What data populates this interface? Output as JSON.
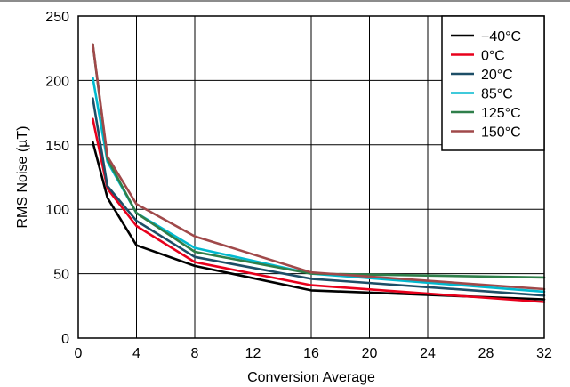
{
  "chart_data": {
    "type": "line",
    "title": "",
    "xlabel": "Conversion Average",
    "ylabel": "RMS Noise (µT)",
    "xlim": [
      0,
      32
    ],
    "ylim": [
      0,
      250
    ],
    "xticks": [
      0,
      4,
      8,
      12,
      16,
      20,
      24,
      28,
      32
    ],
    "yticks": [
      0,
      50,
      100,
      150,
      200,
      250
    ],
    "grid": true,
    "legend_position": "top-right",
    "x": [
      1,
      2,
      4,
      8,
      16,
      32
    ],
    "series": [
      {
        "name": "−40°C",
        "color": "#000000",
        "values": [
          152,
          109,
          72,
          56,
          37,
          30
        ]
      },
      {
        "name": "0°C",
        "color": "#e8001c",
        "values": [
          170,
          116,
          87,
          59,
          41,
          28
        ]
      },
      {
        "name": "20°C",
        "color": "#1d4e67",
        "values": [
          186,
          118,
          91,
          63,
          46,
          33
        ]
      },
      {
        "name": "85°C",
        "color": "#00b9cf",
        "values": [
          202,
          137,
          97,
          70,
          50,
          36
        ]
      },
      {
        "name": "125°C",
        "color": "#2f7f4a",
        "values": [
          228,
          139,
          97,
          67,
          50,
          47
        ]
      },
      {
        "name": "150°C",
        "color": "#a0494a",
        "values": [
          228,
          141,
          104,
          79,
          51,
          38
        ]
      }
    ]
  }
}
